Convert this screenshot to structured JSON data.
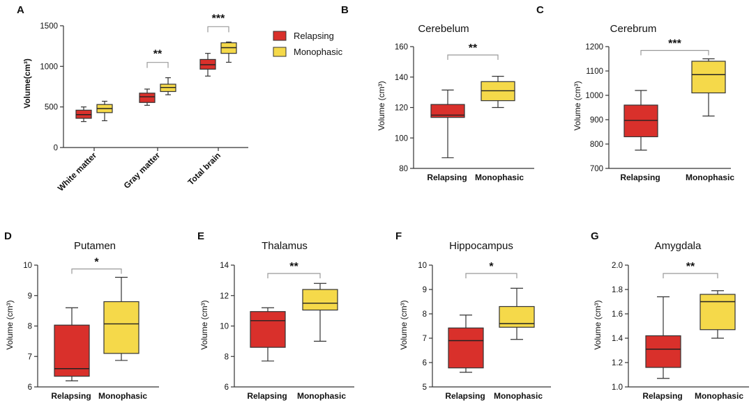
{
  "colors": {
    "relapsing": "#d9302b",
    "monophasic": "#f5d94a",
    "axis": "#333333",
    "bracket": "#999999"
  },
  "legend": {
    "relapsing": "Relapsing",
    "monophasic": "Monophasic"
  },
  "chart_data": [
    {
      "panel": "A",
      "type": "box",
      "title": "",
      "ylabel": "Volume(cm³)",
      "xlabel": "",
      "ylim": [
        0,
        1500
      ],
      "yticks": [
        0,
        500,
        1000,
        1500
      ],
      "yticklabels": [
        "0",
        "500",
        "1000",
        "1500"
      ],
      "categories": [
        "White matter",
        "Gray matter",
        "Total brain"
      ],
      "series": [
        {
          "name": "Relapsing",
          "boxes": [
            {
              "min": 320,
              "q1": 360,
              "median": 405,
              "q3": 460,
              "max": 500
            },
            {
              "min": 520,
              "q1": 555,
              "median": 625,
              "q3": 670,
              "max": 720
            },
            {
              "min": 880,
              "q1": 965,
              "median": 1020,
              "q3": 1085,
              "max": 1160
            }
          ]
        },
        {
          "name": "Monophasic",
          "boxes": [
            {
              "min": 330,
              "q1": 430,
              "median": 480,
              "q3": 530,
              "max": 570
            },
            {
              "min": 650,
              "q1": 690,
              "median": 740,
              "q3": 780,
              "max": 860
            },
            {
              "min": 1050,
              "q1": 1160,
              "median": 1230,
              "q3": 1290,
              "max": 1300
            }
          ]
        }
      ],
      "significance": [
        {
          "category": "White matter",
          "label": ""
        },
        {
          "category": "Gray matter",
          "label": "**"
        },
        {
          "category": "Total brain",
          "label": "***"
        }
      ]
    },
    {
      "panel": "B",
      "type": "box",
      "title": "Cerebelum",
      "ylabel": "Volume (cm³)",
      "xlabel": "",
      "ylim": [
        80,
        160
      ],
      "yticks": [
        80,
        100,
        120,
        140,
        160
      ],
      "yticklabels": [
        "80",
        "100",
        "120",
        "140",
        "160"
      ],
      "categories": [
        "Relapsing",
        "Monophasic"
      ],
      "boxes": [
        {
          "min": 87,
          "q1": 113.5,
          "median": 115,
          "q3": 122,
          "max": 131.5
        },
        {
          "min": 120,
          "q1": 124.5,
          "median": 131,
          "q3": 137,
          "max": 140.5
        }
      ],
      "significance": "**"
    },
    {
      "panel": "C",
      "type": "box",
      "title": "Cerebrum",
      "ylabel": "Volume (cm³)",
      "xlabel": "",
      "ylim": [
        700,
        1200
      ],
      "yticks": [
        700,
        800,
        900,
        1000,
        1100,
        1200
      ],
      "yticklabels": [
        "700",
        "800",
        "900",
        "1000",
        "1100",
        "1200"
      ],
      "categories": [
        "Relapsing",
        "Monophasic"
      ],
      "boxes": [
        {
          "min": 775,
          "q1": 830,
          "median": 897,
          "q3": 960,
          "max": 1020
        },
        {
          "min": 915,
          "q1": 1010,
          "median": 1085,
          "q3": 1140,
          "max": 1150
        }
      ],
      "significance": "***"
    },
    {
      "panel": "D",
      "type": "box",
      "title": "Putamen",
      "ylabel": "Volume (cm³)",
      "xlabel": "",
      "ylim": [
        6,
        10
      ],
      "yticks": [
        6,
        7,
        8,
        9,
        10
      ],
      "yticklabels": [
        "6",
        "7",
        "8",
        "9",
        "10"
      ],
      "categories": [
        "Relapsing",
        "Monophasic"
      ],
      "boxes": [
        {
          "min": 6.2,
          "q1": 6.35,
          "median": 6.6,
          "q3": 8.03,
          "max": 8.6
        },
        {
          "min": 6.87,
          "q1": 7.1,
          "median": 8.07,
          "q3": 8.8,
          "max": 9.6
        }
      ],
      "significance": "*"
    },
    {
      "panel": "E",
      "type": "box",
      "title": "Thalamus",
      "ylabel": "Volume (cm³)",
      "xlabel": "",
      "ylim": [
        6,
        14
      ],
      "yticks": [
        6,
        8,
        10,
        12,
        14
      ],
      "yticklabels": [
        "6",
        "8",
        "10",
        "12",
        "14"
      ],
      "categories": [
        "Relapsing",
        "Monophasic"
      ],
      "boxes": [
        {
          "min": 7.7,
          "q1": 8.6,
          "median": 10.35,
          "q3": 10.95,
          "max": 11.2
        },
        {
          "min": 9.0,
          "q1": 11.05,
          "median": 11.5,
          "q3": 12.4,
          "max": 12.8
        }
      ],
      "significance": "**"
    },
    {
      "panel": "F",
      "type": "box",
      "title": "Hippocampus",
      "ylabel": "Volume (cm³)",
      "xlabel": "",
      "ylim": [
        5,
        10
      ],
      "yticks": [
        5,
        6,
        7,
        8,
        9,
        10
      ],
      "yticklabels": [
        "5",
        "6",
        "7",
        "8",
        "9",
        "10"
      ],
      "categories": [
        "Relapsing",
        "Monophasic"
      ],
      "boxes": [
        {
          "min": 5.6,
          "q1": 5.78,
          "median": 6.9,
          "q3": 7.42,
          "max": 7.95
        },
        {
          "min": 6.95,
          "q1": 7.45,
          "median": 7.6,
          "q3": 8.3,
          "max": 9.05
        }
      ],
      "significance": "*"
    },
    {
      "panel": "G",
      "type": "box",
      "title": "Amygdala",
      "ylabel": "Volume (cm³)",
      "xlabel": "",
      "ylim": [
        1.0,
        2.0
      ],
      "yticks": [
        1.0,
        1.2,
        1.4,
        1.6,
        1.8,
        2.0
      ],
      "yticklabels": [
        "1.0",
        "1.2",
        "1.4",
        "1.6",
        "1.8",
        "2.0"
      ],
      "categories": [
        "Relapsing",
        "Monophasic"
      ],
      "boxes": [
        {
          "min": 1.07,
          "q1": 1.16,
          "median": 1.31,
          "q3": 1.42,
          "max": 1.74
        },
        {
          "min": 1.4,
          "q1": 1.47,
          "median": 1.7,
          "q3": 1.76,
          "max": 1.79
        }
      ],
      "significance": "**"
    }
  ]
}
